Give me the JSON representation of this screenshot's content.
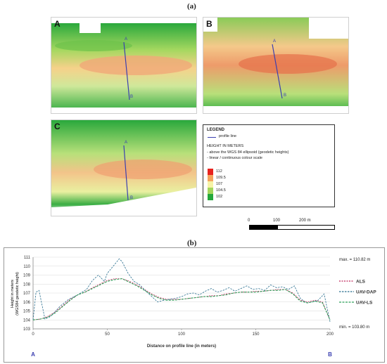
{
  "fig_label_a": "(a)",
  "fig_label_b": "(b)",
  "maps": [
    {
      "letter": "A",
      "end_a": "A",
      "end_b": "B"
    },
    {
      "letter": "B",
      "end_a": "A",
      "end_b": "B"
    },
    {
      "letter": "C",
      "end_a": "A",
      "end_b": "B"
    }
  ],
  "legend": {
    "title": "LEGEND",
    "profile_line": "profile line",
    "height_title": "HEIGHT IN METERS",
    "note1": "- above the WGS 84 ellipsoid (geodetic heights)",
    "note2": "- linear / continuous colour scale",
    "scale": [
      {
        "label": "112",
        "color": "#e8231e"
      },
      {
        "label": "109.5",
        "color": "#f4a35c"
      },
      {
        "label": "107",
        "color": "#f6f3a6"
      },
      {
        "label": "104.5",
        "color": "#a3d65c"
      },
      {
        "label": "102",
        "color": "#24a83b"
      }
    ],
    "scalebar": {
      "t0": "0",
      "t1": "100",
      "t2": "200 m"
    }
  },
  "colors": {
    "profile": "#3b3fb0",
    "als": "#c0265a",
    "dap": "#2a6f8f",
    "ls": "#2fa05a"
  },
  "chart_data": {
    "type": "line",
    "ylabel": "Height in meters\n(WGS84 geodetic height)",
    "xlabel": "Distance on profile line (in meters)",
    "xlim": [
      0,
      200
    ],
    "ylim": [
      103,
      111
    ],
    "xticks": [
      0,
      50,
      100,
      150,
      200
    ],
    "yticks": [
      103,
      104,
      105,
      106,
      107,
      108,
      109,
      110,
      111
    ],
    "x_start_label": "A",
    "x_end_label": "B",
    "max_label": "max. = 110.82 m",
    "min_label": "min. = 103.80 m",
    "series": [
      {
        "name": "ALS",
        "x": [
          0,
          5,
          10,
          15,
          20,
          25,
          30,
          35,
          40,
          45,
          50,
          55,
          60,
          65,
          70,
          75,
          80,
          85,
          90,
          95,
          100,
          105,
          110,
          115,
          120,
          125,
          130,
          135,
          140,
          145,
          150,
          155,
          160,
          165,
          170,
          175,
          180,
          185,
          190,
          195,
          200
        ],
        "y": [
          104.0,
          104.1,
          104.4,
          104.9,
          105.6,
          106.3,
          106.8,
          107.1,
          107.6,
          108.0,
          108.4,
          108.6,
          108.6,
          108.3,
          107.9,
          107.4,
          106.9,
          106.5,
          106.3,
          106.3,
          106.3,
          106.4,
          106.5,
          106.6,
          106.7,
          106.7,
          106.9,
          107.0,
          107.1,
          107.1,
          107.2,
          107.2,
          107.3,
          107.4,
          107.4,
          107.0,
          106.2,
          106.0,
          106.2,
          106.0,
          104.0
        ]
      },
      {
        "name": "UAV-DAP",
        "x": [
          0,
          2,
          4,
          8,
          12,
          18,
          24,
          30,
          36,
          40,
          44,
          48,
          50,
          54,
          58,
          60,
          64,
          68,
          72,
          76,
          80,
          84,
          88,
          92,
          96,
          100,
          104,
          108,
          112,
          116,
          120,
          124,
          128,
          132,
          136,
          140,
          144,
          148,
          152,
          156,
          160,
          164,
          168,
          172,
          176,
          180,
          184,
          188,
          192,
          196,
          200
        ],
        "y": [
          104.0,
          107.1,
          107.3,
          104.1,
          104.4,
          105.5,
          106.3,
          106.8,
          107.4,
          108.4,
          109.0,
          108.3,
          109.2,
          110.0,
          110.82,
          110.5,
          109.2,
          108.3,
          107.9,
          107.2,
          106.6,
          106.0,
          106.2,
          106.3,
          106.4,
          106.6,
          106.9,
          107.0,
          106.8,
          107.2,
          107.5,
          107.1,
          107.3,
          107.6,
          107.2,
          107.5,
          107.8,
          107.4,
          107.5,
          107.3,
          107.9,
          107.6,
          107.7,
          107.4,
          107.8,
          106.4,
          105.9,
          106.0,
          106.2,
          106.9,
          103.8
        ]
      },
      {
        "name": "UAV-LS",
        "x": [
          0,
          5,
          10,
          15,
          20,
          25,
          30,
          35,
          40,
          45,
          50,
          55,
          60,
          65,
          70,
          75,
          80,
          85,
          90,
          95,
          100,
          105,
          110,
          115,
          120,
          125,
          130,
          135,
          140,
          145,
          150,
          155,
          160,
          165,
          170,
          175,
          180,
          185,
          190,
          195,
          200
        ],
        "y": [
          104.0,
          104.1,
          104.3,
          104.8,
          105.5,
          106.2,
          106.8,
          107.1,
          107.5,
          107.9,
          108.3,
          108.5,
          108.6,
          108.2,
          107.8,
          107.3,
          106.8,
          106.4,
          106.2,
          106.2,
          106.3,
          106.4,
          106.5,
          106.6,
          106.6,
          106.7,
          106.8,
          107.0,
          107.1,
          107.1,
          107.1,
          107.2,
          107.3,
          107.3,
          107.4,
          106.9,
          106.1,
          105.9,
          106.1,
          105.9,
          104.0
        ]
      }
    ]
  }
}
